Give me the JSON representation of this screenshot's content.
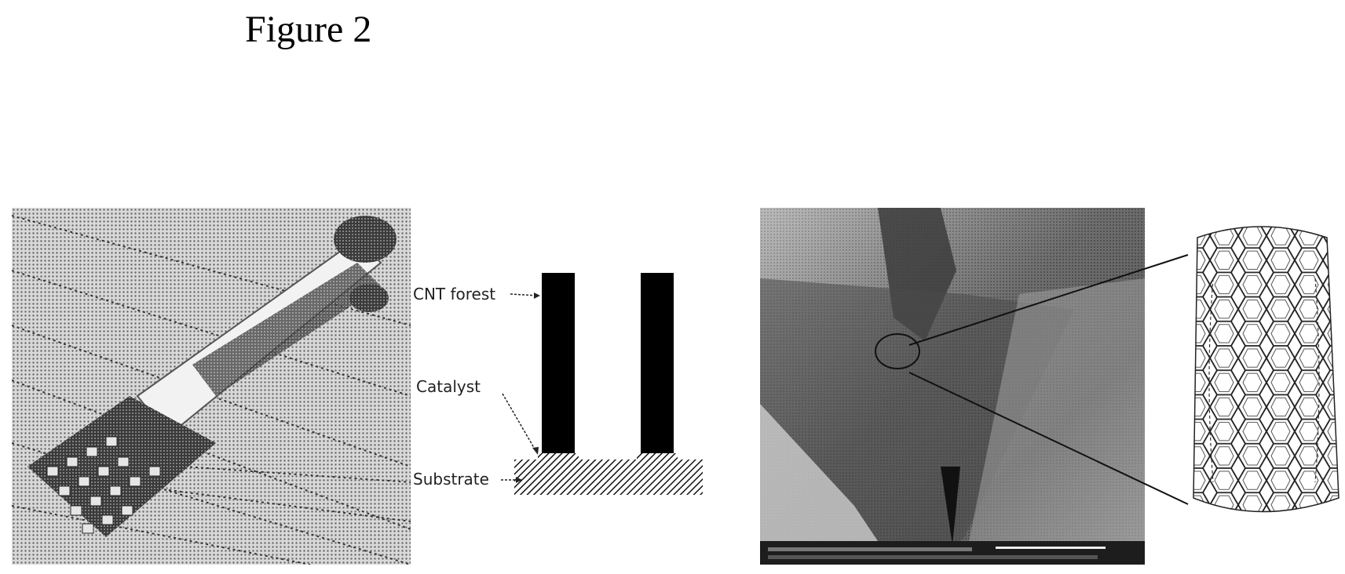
{
  "figure": {
    "title": "Figure 2"
  },
  "diagram": {
    "labels": {
      "cnt_forest": "CNT forest",
      "catalyst": "Catalyst",
      "substrate": "Substrate"
    }
  },
  "colors": {
    "ink": "#000000",
    "background": "#ffffff"
  }
}
